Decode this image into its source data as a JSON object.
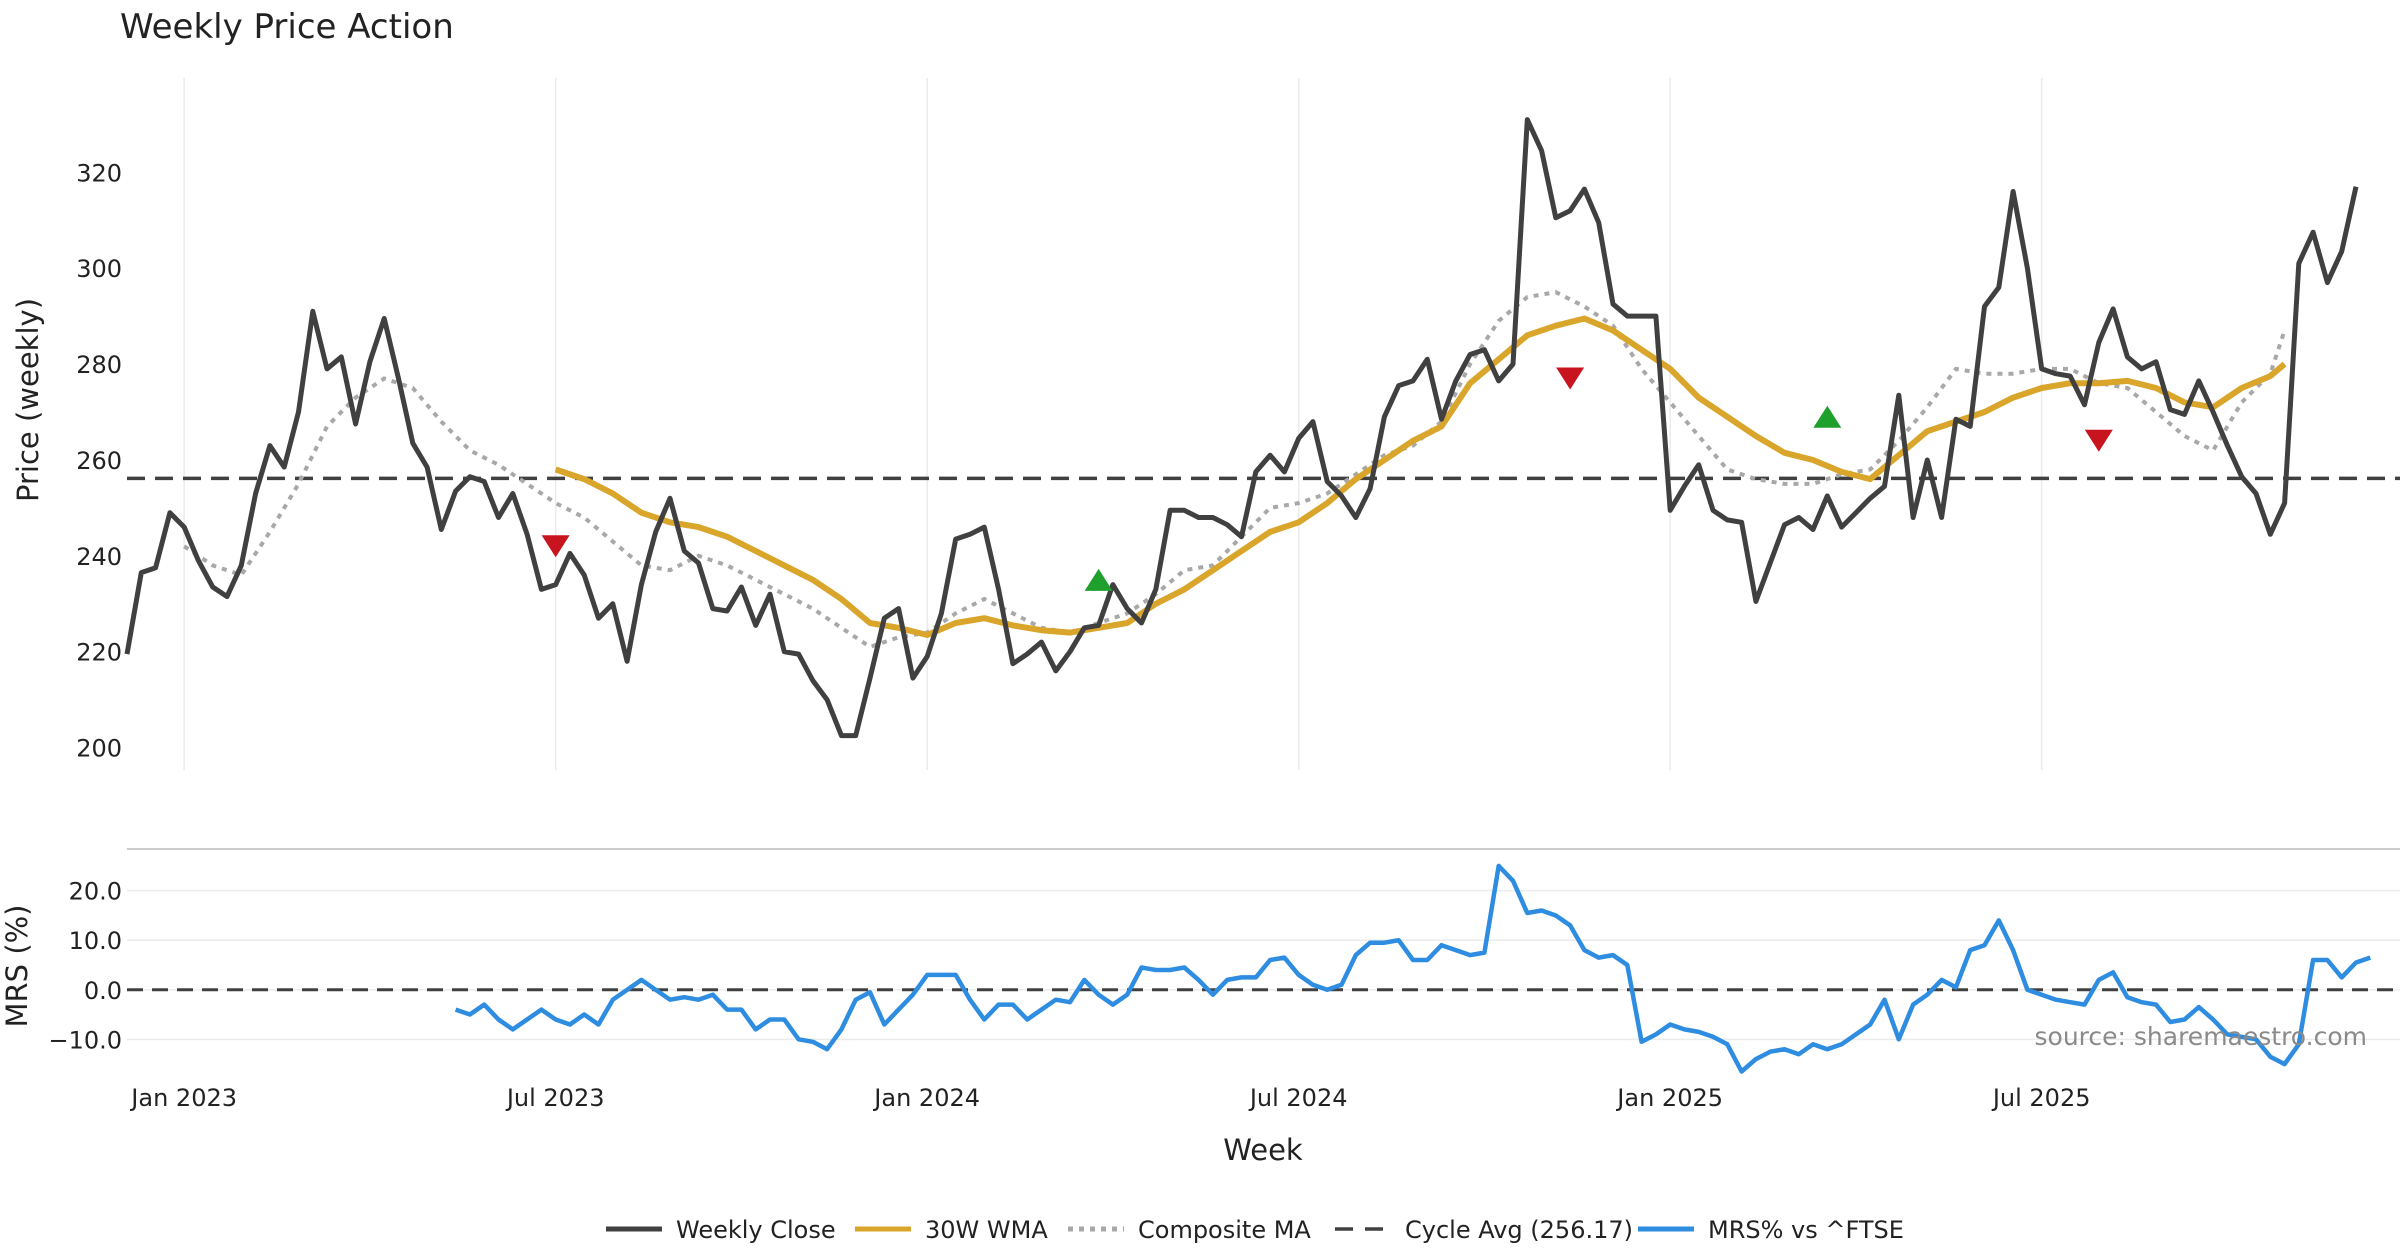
{
  "chart_data": {
    "type": "line",
    "title": "Weekly Price Action",
    "source": "source: sharemaestro.com",
    "xlabel": "Week",
    "x_ticks": [
      "Jan 2023",
      "Jul 2023",
      "Jan 2024",
      "Jul 2024",
      "Jan 2025",
      "Jul 2025"
    ],
    "x_tick_weeks": [
      4,
      30,
      56,
      82,
      108,
      134
    ],
    "price_panel": {
      "ylabel": "Price (weekly)",
      "ylim": [
        197,
        338
      ],
      "yticks": [
        200,
        220,
        240,
        260,
        280,
        300,
        320
      ],
      "weekly_close": [
        219.5,
        236.5,
        237.5,
        249,
        246,
        239,
        233.5,
        231.5,
        238,
        253,
        263,
        258.5,
        270,
        291,
        279,
        281.5,
        267.5,
        280.5,
        289.5,
        277,
        263.5,
        258.5,
        245.5,
        253.5,
        256.5,
        255.5,
        248,
        253,
        244.5,
        233,
        234,
        240.5,
        236,
        227,
        230,
        218,
        234,
        245,
        252,
        241,
        238.5,
        229,
        228.5,
        233.5,
        225.5,
        232,
        220,
        219.5,
        214,
        210,
        202.5,
        202.5,
        214.5,
        227,
        229,
        214.5,
        219,
        228,
        243.5,
        244.5,
        246,
        233,
        217.5,
        219.5,
        222,
        216,
        220,
        225,
        225.5,
        234,
        229,
        226,
        233,
        249.5,
        249.5,
        248,
        248,
        246.5,
        244,
        257.5,
        261,
        257.5,
        264.5,
        268,
        255.5,
        252.5,
        248,
        254,
        269,
        275.5,
        276.5,
        281,
        268.5,
        276.5,
        282,
        283,
        276.5,
        280,
        331,
        324.5,
        310.5,
        312,
        316.5,
        309.5,
        292.5,
        290,
        290,
        290,
        249.5,
        254.5,
        259,
        249.5,
        247.5,
        247,
        230.5,
        238.5,
        246.5,
        248,
        245.5,
        252.5,
        246,
        249,
        252,
        254.5,
        273.5,
        248,
        260,
        248,
        268.5,
        267,
        292,
        296,
        316,
        300,
        279,
        278,
        277.5,
        271.5,
        284.5,
        291.5,
        281.5,
        279,
        280.5,
        270.5,
        269.5,
        276.5,
        270,
        263,
        256.5,
        253,
        244.5,
        251,
        301,
        307.5,
        297,
        303.5,
        317
      ],
      "wma_30w": [
        [
          30,
          258
        ],
        [
          32,
          256
        ],
        [
          34,
          253
        ],
        [
          36,
          249
        ],
        [
          38,
          247
        ],
        [
          40,
          246
        ],
        [
          42,
          244
        ],
        [
          44,
          241
        ],
        [
          46,
          238
        ],
        [
          48,
          235
        ],
        [
          50,
          231
        ],
        [
          52,
          226
        ],
        [
          54,
          225
        ],
        [
          56,
          223.5
        ],
        [
          58,
          226
        ],
        [
          60,
          227
        ],
        [
          62,
          225.5
        ],
        [
          64,
          224.5
        ],
        [
          66,
          224
        ],
        [
          68,
          225
        ],
        [
          70,
          226
        ],
        [
          72,
          230
        ],
        [
          74,
          233
        ],
        [
          76,
          237
        ],
        [
          78,
          241
        ],
        [
          80,
          245
        ],
        [
          82,
          247
        ],
        [
          84,
          251
        ],
        [
          86,
          256
        ],
        [
          88,
          260
        ],
        [
          90,
          264
        ],
        [
          92,
          267
        ],
        [
          94,
          276
        ],
        [
          96,
          281
        ],
        [
          98,
          286
        ],
        [
          100,
          288
        ],
        [
          102,
          289.5
        ],
        [
          104,
          287
        ],
        [
          106,
          283
        ],
        [
          108,
          279
        ],
        [
          110,
          273
        ],
        [
          112,
          269
        ],
        [
          114,
          265
        ],
        [
          116,
          261.5
        ],
        [
          118,
          260
        ],
        [
          120,
          257.5
        ],
        [
          122,
          256
        ],
        [
          124,
          261
        ],
        [
          126,
          266
        ],
        [
          128,
          268
        ],
        [
          130,
          270
        ],
        [
          132,
          273
        ],
        [
          134,
          275
        ],
        [
          136,
          276
        ],
        [
          138,
          276
        ],
        [
          140,
          276.5
        ],
        [
          142,
          275
        ],
        [
          144,
          272
        ],
        [
          146,
          271
        ],
        [
          148,
          275
        ],
        [
          150,
          277.5
        ],
        [
          151,
          280
        ]
      ],
      "composite_ma": [
        [
          4,
          242
        ],
        [
          6,
          238
        ],
        [
          8,
          236
        ],
        [
          10,
          245
        ],
        [
          12,
          255
        ],
        [
          14,
          267
        ],
        [
          16,
          273
        ],
        [
          18,
          277
        ],
        [
          20,
          275
        ],
        [
          22,
          268
        ],
        [
          24,
          262
        ],
        [
          26,
          259
        ],
        [
          28,
          255
        ],
        [
          30,
          251
        ],
        [
          32,
          248
        ],
        [
          34,
          243
        ],
        [
          36,
          238
        ],
        [
          38,
          237
        ],
        [
          40,
          240
        ],
        [
          42,
          238
        ],
        [
          44,
          235
        ],
        [
          46,
          232
        ],
        [
          48,
          229
        ],
        [
          50,
          225
        ],
        [
          52,
          221
        ],
        [
          54,
          223
        ],
        [
          56,
          224
        ],
        [
          58,
          228
        ],
        [
          60,
          231
        ],
        [
          62,
          228
        ],
        [
          64,
          225
        ],
        [
          66,
          224
        ],
        [
          68,
          226
        ],
        [
          70,
          228
        ],
        [
          72,
          232
        ],
        [
          74,
          237
        ],
        [
          76,
          238
        ],
        [
          78,
          244
        ],
        [
          80,
          250
        ],
        [
          82,
          251
        ],
        [
          84,
          253
        ],
        [
          86,
          257
        ],
        [
          88,
          261
        ],
        [
          90,
          263
        ],
        [
          92,
          268
        ],
        [
          94,
          280
        ],
        [
          96,
          289
        ],
        [
          98,
          294
        ],
        [
          100,
          295
        ],
        [
          102,
          292
        ],
        [
          104,
          288
        ],
        [
          106,
          279
        ],
        [
          108,
          272
        ],
        [
          110,
          265
        ],
        [
          112,
          258
        ],
        [
          114,
          256
        ],
        [
          116,
          255
        ],
        [
          118,
          255
        ],
        [
          120,
          257
        ],
        [
          122,
          258
        ],
        [
          124,
          264
        ],
        [
          126,
          271
        ],
        [
          128,
          279
        ],
        [
          130,
          278
        ],
        [
          132,
          278
        ],
        [
          134,
          279
        ],
        [
          136,
          279
        ],
        [
          138,
          276
        ],
        [
          140,
          275
        ],
        [
          142,
          270
        ],
        [
          144,
          265
        ],
        [
          146,
          262
        ],
        [
          148,
          272
        ],
        [
          150,
          278
        ],
        [
          151,
          287
        ]
      ],
      "cycle_avg": 256.17,
      "buy_signals": [
        [
          68,
          235
        ],
        [
          119,
          269
        ]
      ],
      "sell_signals": [
        [
          30,
          242
        ],
        [
          101,
          277
        ],
        [
          138,
          264
        ]
      ]
    },
    "mrs_panel": {
      "ylabel": "MRS (%)",
      "ylim": [
        -17,
        27
      ],
      "yticks": [
        -10,
        0,
        10,
        20
      ],
      "ytick_labels": [
        "−10.0",
        "0.0",
        "10.0",
        "20.0"
      ],
      "start_week": 23,
      "values": [
        -4,
        -5,
        -3,
        -6,
        -8,
        -6,
        -4,
        -6,
        -7,
        -5,
        -7,
        -2,
        0,
        2,
        0,
        -2,
        -1.5,
        -2,
        -1,
        -4,
        -4,
        -8,
        -6,
        -6,
        -10,
        -10.5,
        -12,
        -8,
        -2,
        -0.5,
        -7,
        -4,
        -1,
        3,
        3,
        3,
        -2,
        -6,
        -3,
        -3,
        -6,
        -4,
        -2,
        -2.5,
        2,
        -1,
        -3,
        -1,
        4.5,
        4,
        4,
        4.5,
        2,
        -1,
        2,
        2.5,
        2.5,
        6,
        6.5,
        3,
        1,
        0,
        1,
        7,
        9.5,
        9.5,
        10,
        6,
        6,
        9,
        8,
        7,
        7.5,
        25,
        22,
        15.5,
        16,
        15,
        13,
        8,
        6.5,
        7,
        5,
        -10.5,
        -9,
        -7,
        -8,
        -8.5,
        -9.5,
        -11,
        -16.5,
        -14,
        -12.5,
        -12,
        -13,
        -11,
        -12,
        -11,
        -9,
        -7,
        -2,
        -10,
        -3,
        -1,
        2,
        0.5,
        8,
        9,
        14,
        8,
        0,
        -1,
        -2,
        -2.5,
        -3,
        2,
        3.5,
        -1.5,
        -2.5,
        -3,
        -6.5,
        -6,
        -3.5,
        -6,
        -9,
        -9.5,
        -10,
        -13.5,
        -15,
        -11,
        6,
        6,
        2.5,
        5.5,
        6.5
      ],
      "reference": 0
    },
    "legend": [
      {
        "label": "Weekly Close",
        "style": "solid",
        "color": "#404040"
      },
      {
        "label": "30W WMA",
        "style": "solid",
        "color": "#d9a52b"
      },
      {
        "label": "Composite MA",
        "style": "dotted",
        "color": "#a8a8a8"
      },
      {
        "label": "Cycle Avg (256.17)",
        "style": "dashed",
        "color": "#404040"
      },
      {
        "label": "MRS% vs ^FTSE",
        "style": "solid",
        "color": "#2e8de0"
      }
    ],
    "colors": {
      "close": "#404040",
      "wma": "#d9a52b",
      "composite": "#a8a8a8",
      "cycle": "#404040",
      "mrs": "#2e8de0",
      "buy": "#1fa02c",
      "sell": "#c8141e",
      "grid": "#ebebeb"
    }
  }
}
